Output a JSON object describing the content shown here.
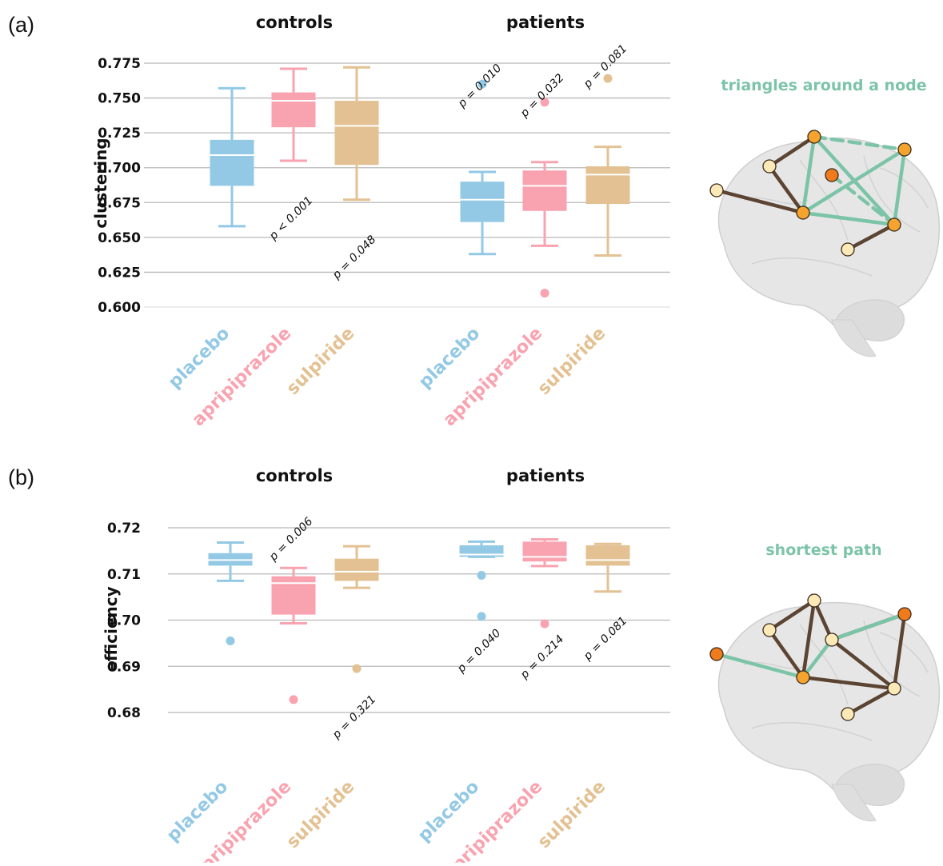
{
  "figure": {
    "panels": [
      {
        "letter": "(a)",
        "brain_title": "triangles around a node",
        "brain_mode": "triangles"
      },
      {
        "letter": "(b)",
        "brain_title": "shortest path",
        "brain_mode": "path"
      }
    ]
  },
  "colors": {
    "placebo": "#93c9e4",
    "aripiprazole": "#f9a3b0",
    "sulpiride": "#e3c192",
    "grid": "#b8b8b8",
    "edge_brown": "#5c4433",
    "edge_green": "#7cc4a7",
    "node_light": "#fbe9b7",
    "node_mid": "#f4a42e",
    "node_dark": "#ef7b1d",
    "brain_fill": "#e6e6e6",
    "brain_stroke": "#cfcfcf"
  },
  "chart_data": [
    {
      "type": "box",
      "ylabel": "clustering",
      "ylim": [
        0.6,
        0.78
      ],
      "yticks": [
        "0.600",
        "0.625",
        "0.650",
        "0.675",
        "0.700",
        "0.725",
        "0.750",
        "0.775"
      ],
      "grid": true,
      "groups": [
        {
          "title": "controls",
          "boxes": [
            {
              "category": "placebo",
              "q1": 0.687,
              "median": 0.709,
              "q3": 0.72,
              "whisker_low": 0.658,
              "whisker_high": 0.757,
              "outliers": []
            },
            {
              "category": "apripiprazole",
              "q1": 0.729,
              "median": 0.748,
              "q3": 0.754,
              "whisker_low": 0.705,
              "whisker_high": 0.771,
              "outliers": []
            },
            {
              "category": "sulpiride",
              "q1": 0.702,
              "median": 0.73,
              "q3": 0.748,
              "whisker_low": 0.677,
              "whisker_high": 0.772,
              "outliers": []
            }
          ],
          "annotations": [
            {
              "category": "apripiprazole",
              "text": "p < 0.001",
              "y": 0.662
            },
            {
              "category": "sulpiride",
              "text": "p = 0.048",
              "y": 0.634
            }
          ]
        },
        {
          "title": "patients",
          "boxes": [
            {
              "category": "placebo",
              "q1": 0.661,
              "median": 0.677,
              "q3": 0.69,
              "whisker_low": 0.638,
              "whisker_high": 0.697,
              "outliers": [
                0.76
              ]
            },
            {
              "category": "apripiprazole",
              "q1": 0.669,
              "median": 0.687,
              "q3": 0.698,
              "whisker_low": 0.644,
              "whisker_high": 0.704,
              "outliers": [
                0.747,
                0.61
              ]
            },
            {
              "category": "sulpiride",
              "q1": 0.674,
              "median": 0.695,
              "q3": 0.701,
              "whisker_low": 0.637,
              "whisker_high": 0.715,
              "outliers": [
                0.764
              ]
            }
          ],
          "annotations": [
            {
              "category": "placebo",
              "text": "p = 0.010",
              "y": 0.757
            },
            {
              "category": "apripiprazole",
              "text": "p = 0.032",
              "y": 0.75
            },
            {
              "category": "sulpiride",
              "text": "p = 0.081",
              "y": 0.771
            }
          ]
        }
      ]
    },
    {
      "type": "box",
      "ylabel": "efficiency",
      "ylim": [
        0.675,
        0.722
      ],
      "yticks": [
        "0.68",
        "0.69",
        "0.70",
        "0.71",
        "0.72"
      ],
      "grid": true,
      "groups": [
        {
          "title": "controls",
          "boxes": [
            {
              "category": "placebo",
              "q1": 0.7118,
              "median": 0.713,
              "q3": 0.7145,
              "whisker_low": 0.7085,
              "whisker_high": 0.7168,
              "outliers": [
                0.6955
              ]
            },
            {
              "category": "apripiprazole",
              "q1": 0.7012,
              "median": 0.708,
              "q3": 0.7095,
              "whisker_low": 0.6993,
              "whisker_high": 0.7113,
              "outliers": [
                0.6828
              ]
            },
            {
              "category": "sulpiride",
              "q1": 0.7085,
              "median": 0.7105,
              "q3": 0.7133,
              "whisker_low": 0.707,
              "whisker_high": 0.716,
              "outliers": [
                0.6895
              ]
            }
          ],
          "annotations": [
            {
              "category": "apripiprazole",
              "text": "p = 0.006",
              "y": 0.717
            },
            {
              "category": "sulpiride",
              "text": "p = 0.321",
              "y": 0.6785
            }
          ]
        },
        {
          "title": "patients",
          "boxes": [
            {
              "category": "placebo",
              "q1": 0.7137,
              "median": 0.7142,
              "q3": 0.7162,
              "whisker_low": 0.7137,
              "whisker_high": 0.717,
              "outliers": [
                0.7097,
                0.7008
              ]
            },
            {
              "category": "apripiprazole",
              "q1": 0.7127,
              "median": 0.7137,
              "q3": 0.717,
              "whisker_low": 0.7117,
              "whisker_high": 0.7175,
              "outliers": [
                0.6992
              ]
            },
            {
              "category": "sulpiride",
              "q1": 0.7118,
              "median": 0.713,
              "q3": 0.7162,
              "whisker_low": 0.7062,
              "whisker_high": 0.7165,
              "outliers": []
            }
          ],
          "annotations": [
            {
              "category": "placebo",
              "text": "p = 0.040",
              "y": 0.6928
            },
            {
              "category": "apripiprazole",
              "text": "p = 0.214",
              "y": 0.6915
            },
            {
              "category": "sulpiride",
              "text": "p = 0.081",
              "y": 0.6955
            }
          ]
        }
      ]
    }
  ]
}
